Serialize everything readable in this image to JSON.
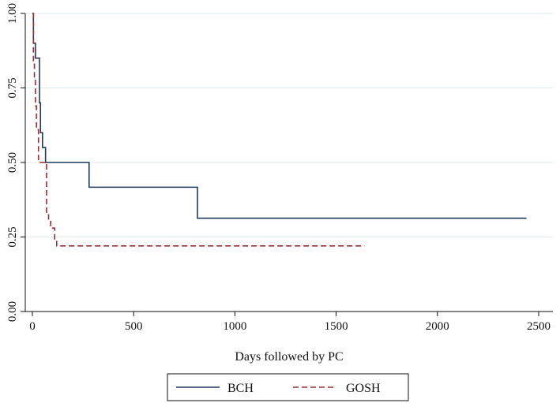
{
  "chart_data": {
    "type": "line",
    "xlabel": "Days followed by PC",
    "ylabel": "",
    "xlim": [
      0,
      2500
    ],
    "ylim": [
      0,
      1
    ],
    "x_ticks": [
      0,
      500,
      1000,
      1500,
      2000,
      2500
    ],
    "y_ticks": [
      0.0,
      0.25,
      0.5,
      0.75,
      1.0
    ],
    "x_tick_labels": [
      "0",
      "500",
      "1000",
      "1500",
      "2000",
      "2500"
    ],
    "y_tick_labels": [
      "0.00",
      "0.25",
      "0.50",
      "0.75",
      "1.00"
    ],
    "grid": "horizontal",
    "legend_position": "bottom",
    "step": true,
    "series": [
      {
        "name": "BCH",
        "color": "#1f3a5f",
        "line_style": "solid",
        "points": [
          [
            0,
            1.0
          ],
          [
            5,
            0.9
          ],
          [
            15,
            0.85
          ],
          [
            35,
            0.7
          ],
          [
            40,
            0.6
          ],
          [
            50,
            0.55
          ],
          [
            65,
            0.5
          ],
          [
            280,
            0.417
          ],
          [
            815,
            0.313
          ],
          [
            2440,
            0.313
          ]
        ]
      },
      {
        "name": "GOSH",
        "color": "#9b2d30",
        "line_style": "dashed",
        "points": [
          [
            0,
            1.0
          ],
          [
            5,
            0.83
          ],
          [
            10,
            0.78
          ],
          [
            15,
            0.69
          ],
          [
            20,
            0.61
          ],
          [
            30,
            0.5
          ],
          [
            55,
            0.5
          ],
          [
            70,
            0.33
          ],
          [
            80,
            0.31
          ],
          [
            90,
            0.28
          ],
          [
            110,
            0.24
          ],
          [
            120,
            0.22
          ],
          [
            1640,
            0.22
          ]
        ]
      }
    ]
  }
}
